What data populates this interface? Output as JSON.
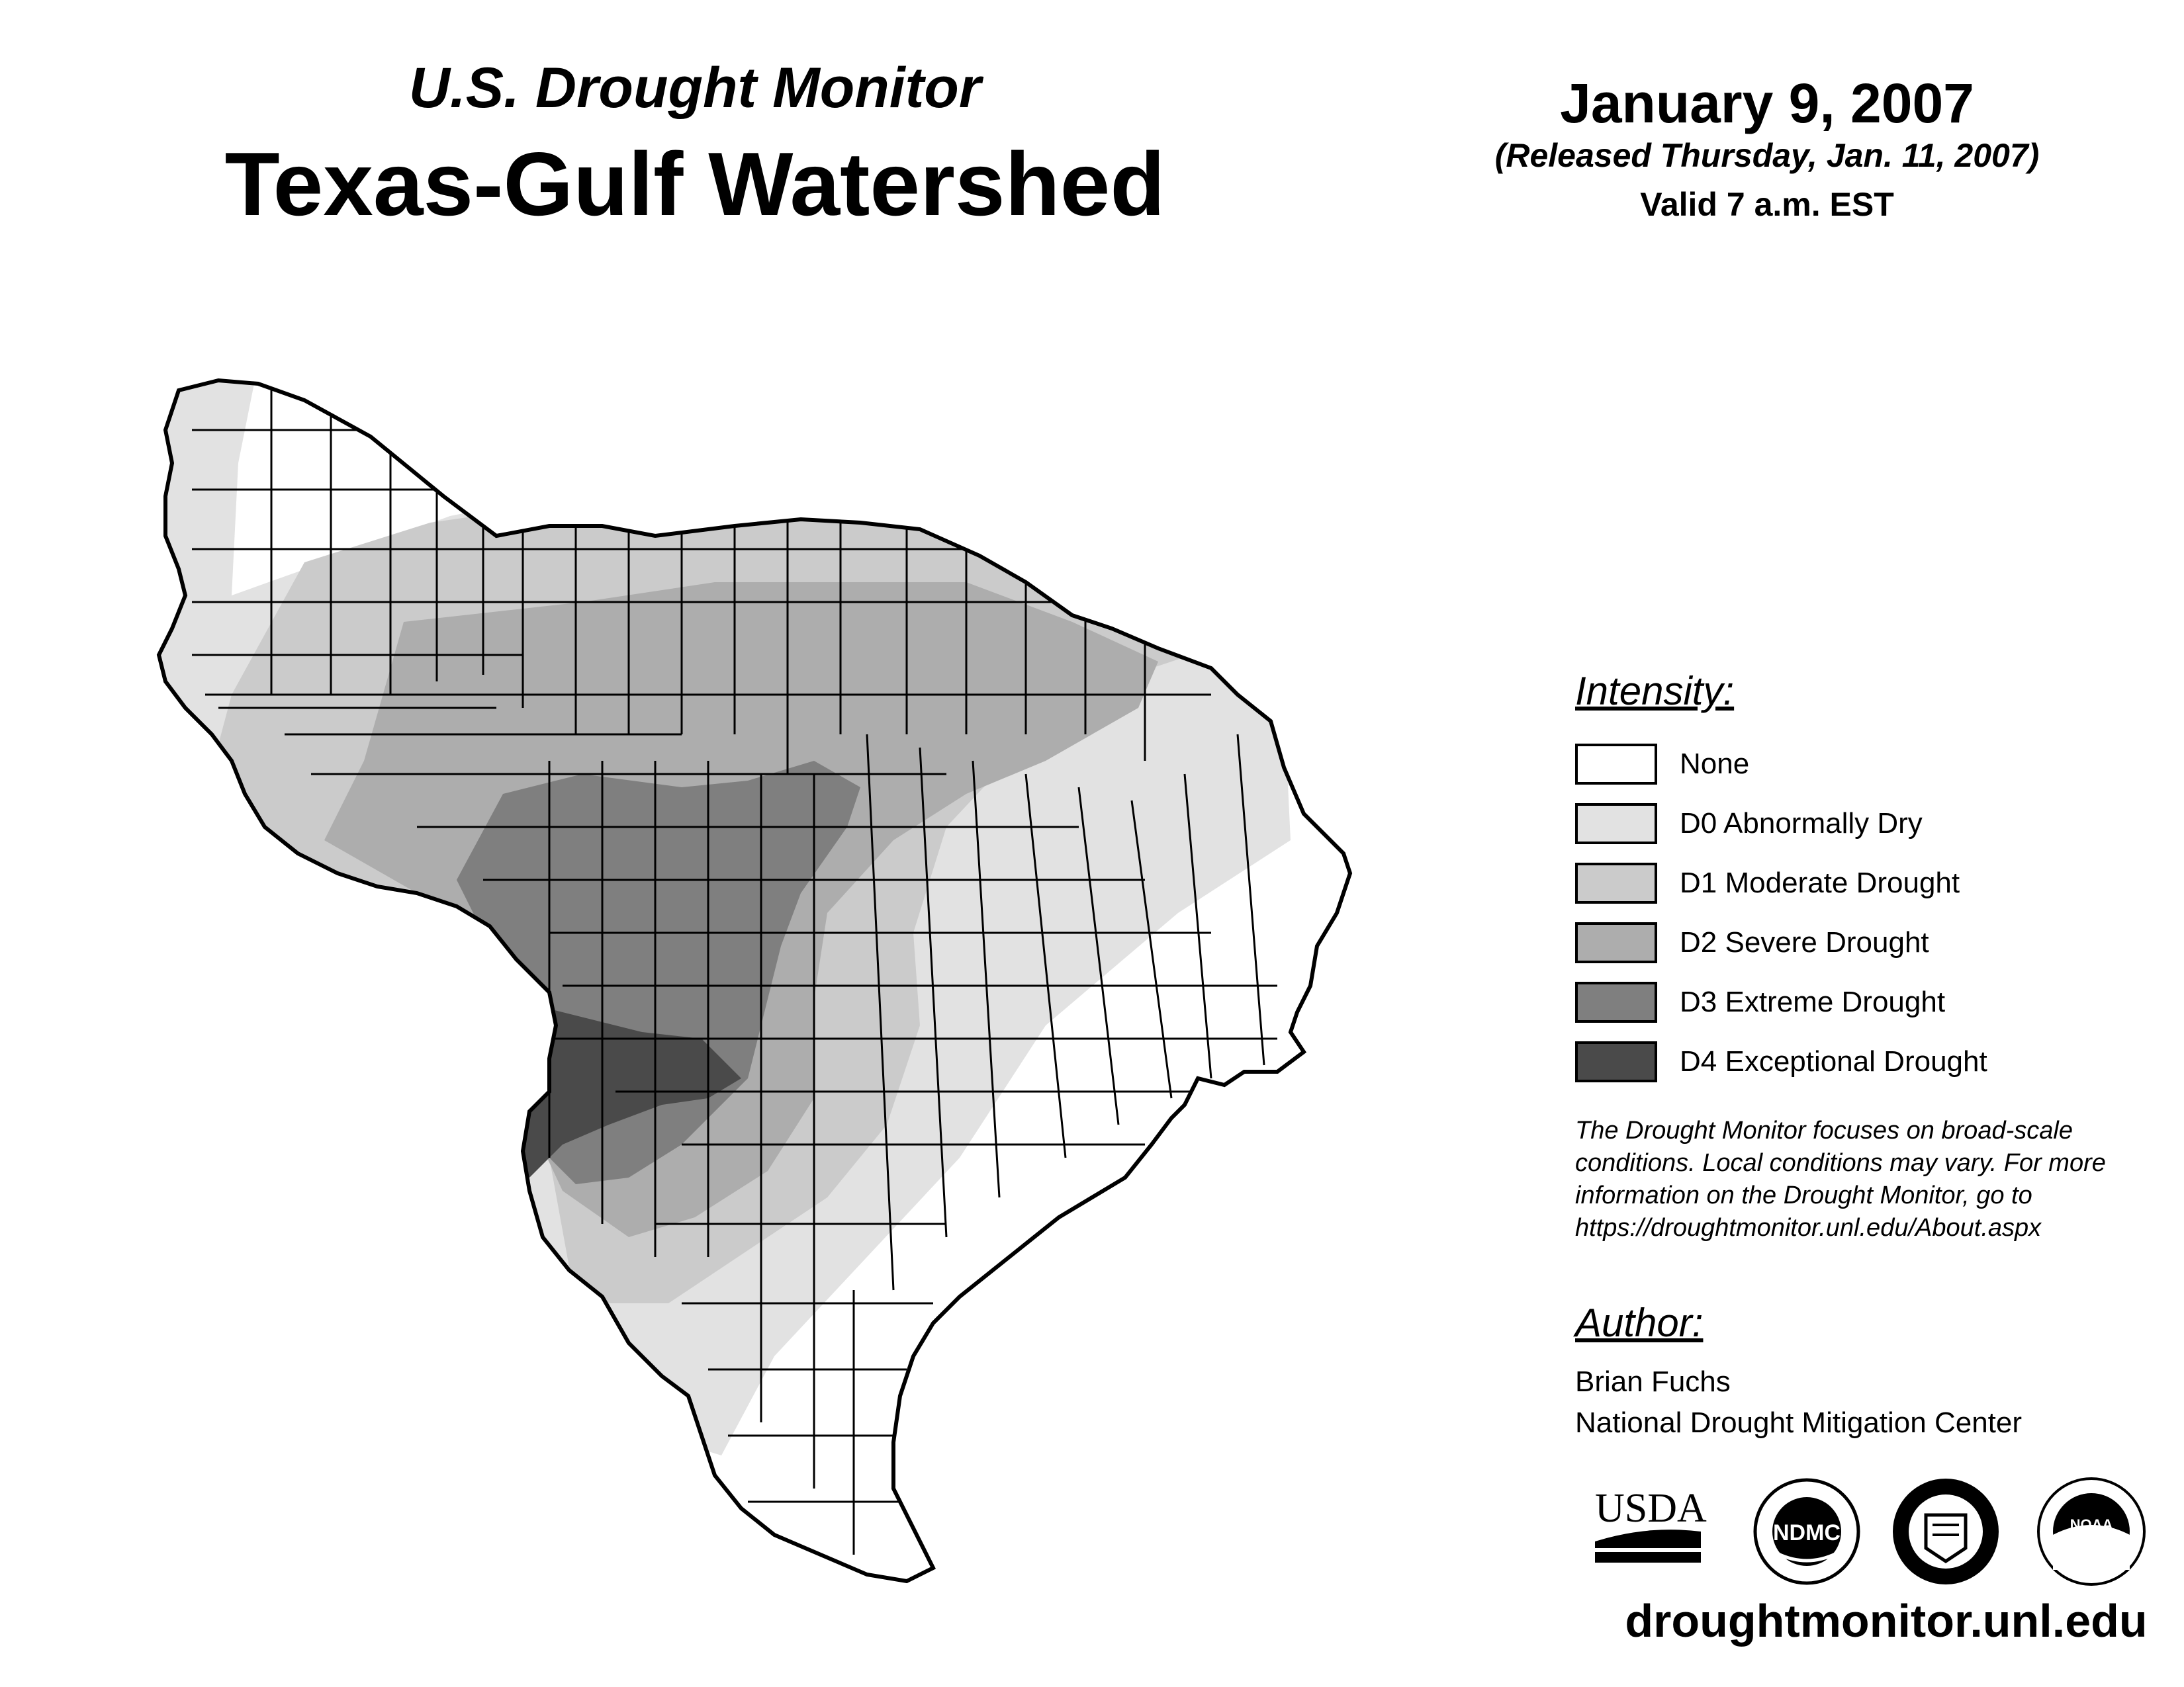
{
  "header": {
    "subtitle": "U.S. Drought Monitor",
    "title": "Texas-Gulf Watershed",
    "date": "January 9, 2007",
    "released": "(Released Thursday, Jan. 11, 2007)",
    "valid": "Valid 7 a.m. EST"
  },
  "legend": {
    "title": "Intensity:",
    "items": [
      {
        "label": "None",
        "color": "#ffffff"
      },
      {
        "label": "D0 Abnormally Dry",
        "color": "#e2e2e2"
      },
      {
        "label": "D1 Moderate Drought",
        "color": "#cbcbcb"
      },
      {
        "label": "D2 Severe Drought",
        "color": "#adadad"
      },
      {
        "label": "D3 Extreme Drought",
        "color": "#7f7f7f"
      },
      {
        "label": "D4 Exceptional Drought",
        "color": "#4a4a4a"
      }
    ]
  },
  "note": {
    "line1": "The Drought Monitor focuses on broad-scale",
    "line2": "conditions. Local conditions may vary. For more",
    "line3": "information on the Drought Monitor, go to",
    "line4": "https://droughtmonitor.unl.edu/About.aspx"
  },
  "author": {
    "title": "Author:",
    "name": "Brian Fuchs",
    "org": "National Drought Mitigation Center"
  },
  "logos": {
    "usda": "USDA",
    "ndmc": "NDMC",
    "noaa": "NOAA"
  },
  "footer": {
    "url": "droughtmonitor.unl.edu"
  },
  "map": {
    "region": "Texas-Gulf Watershed",
    "zones": [
      "None",
      "D0",
      "D1",
      "D2",
      "D3",
      "D4"
    ]
  }
}
